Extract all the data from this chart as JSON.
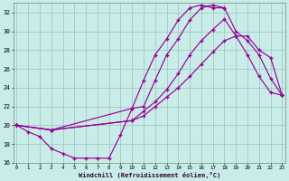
{
  "xlabel": "Windchill (Refroidissement éolien,°C)",
  "bg_color": "#c8ede8",
  "line_color": "#990099",
  "grid_color": "#9fbfba",
  "xlim": [
    -0.3,
    23.3
  ],
  "ylim": [
    16,
    33
  ],
  "yticks": [
    16,
    18,
    20,
    22,
    24,
    26,
    28,
    30,
    32
  ],
  "xticks": [
    0,
    1,
    2,
    3,
    4,
    5,
    6,
    7,
    8,
    9,
    10,
    11,
    12,
    13,
    14,
    15,
    16,
    17,
    18,
    19,
    20,
    21,
    22,
    23
  ],
  "curve1_x": [
    0,
    1,
    2,
    3,
    4,
    5,
    6,
    7,
    8,
    9,
    10,
    11,
    12,
    13,
    14,
    15,
    16,
    17,
    18
  ],
  "curve1_y": [
    20.0,
    19.3,
    18.8,
    17.5,
    17.0,
    16.5,
    16.5,
    16.5,
    16.5,
    19.0,
    21.8,
    24.8,
    27.5,
    29.2,
    31.2,
    32.5,
    32.8,
    32.5,
    32.5
  ],
  "curve2_x": [
    0,
    3,
    10,
    11,
    12,
    13,
    14,
    15,
    16,
    17,
    18,
    19,
    20,
    21,
    22,
    23
  ],
  "curve2_y": [
    20.0,
    19.5,
    21.8,
    22.0,
    24.8,
    27.5,
    29.2,
    31.2,
    32.5,
    32.8,
    32.5,
    30.0,
    29.0,
    27.5,
    25.0,
    23.2
  ],
  "curve3_x": [
    0,
    3,
    10,
    11,
    12,
    13,
    14,
    15,
    16,
    17,
    18,
    19,
    20,
    21,
    22,
    23
  ],
  "curve3_y": [
    20.0,
    19.5,
    20.5,
    21.5,
    22.5,
    23.8,
    25.5,
    27.5,
    29.0,
    30.2,
    31.3,
    29.5,
    27.5,
    25.2,
    23.5,
    23.2
  ],
  "curve4_x": [
    0,
    3,
    10,
    11,
    12,
    13,
    14,
    15,
    16,
    17,
    18,
    19,
    20,
    21,
    22,
    23
  ],
  "curve4_y": [
    20.0,
    19.5,
    20.5,
    21.0,
    22.0,
    23.0,
    24.0,
    25.2,
    26.5,
    27.8,
    29.0,
    29.5,
    29.5,
    28.0,
    27.2,
    23.2
  ]
}
